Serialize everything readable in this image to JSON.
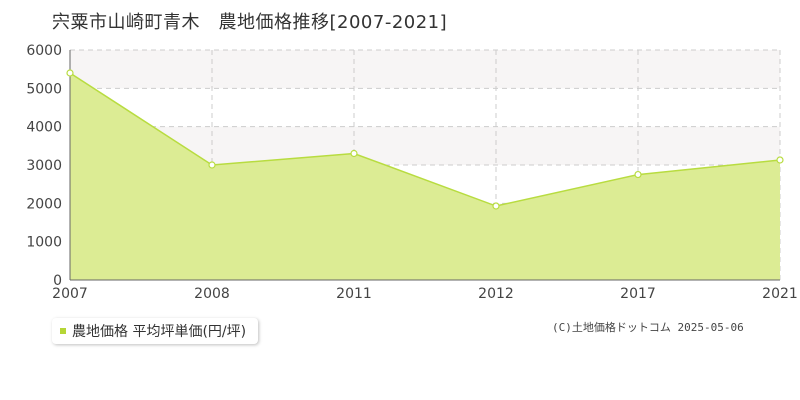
{
  "title": "宍粟市山崎町青木　農地価格推移[2007-2021]",
  "legend": {
    "label": "農地価格 平均坪単価(円/坪)"
  },
  "credit": "(C)土地価格ドットコム 2025-05-06",
  "colors": {
    "fill": "#dcec94",
    "line": "#b8dc40",
    "band": "#f7f5f5",
    "grid": "#cccccc"
  },
  "chart_data": {
    "type": "area",
    "categories": [
      "2007",
      "2008",
      "2011",
      "2012",
      "2017",
      "2021"
    ],
    "series": [
      {
        "name": "農地価格 平均坪単価(円/坪)",
        "values": [
          5400,
          3000,
          3300,
          1930,
          2750,
          3130
        ]
      }
    ],
    "ylim": [
      0,
      6000
    ],
    "yticks": [
      0,
      1000,
      2000,
      3000,
      4000,
      5000,
      6000
    ],
    "grid": true,
    "legend_position": "bottom-left"
  }
}
